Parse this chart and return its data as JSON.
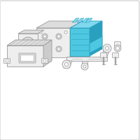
{
  "bg_color": "#ffffff",
  "border_color": "#cccccc",
  "line_color": "#999999",
  "blue_color": "#4dc8e0",
  "blue_dark": "#2aa0c0",
  "blue_light": "#80d8ee",
  "gray_fill": "#eeeeee",
  "gray_mid": "#dddddd",
  "gray_dark": "#cccccc",
  "figsize": [
    2.0,
    2.0
  ],
  "dpi": 100
}
